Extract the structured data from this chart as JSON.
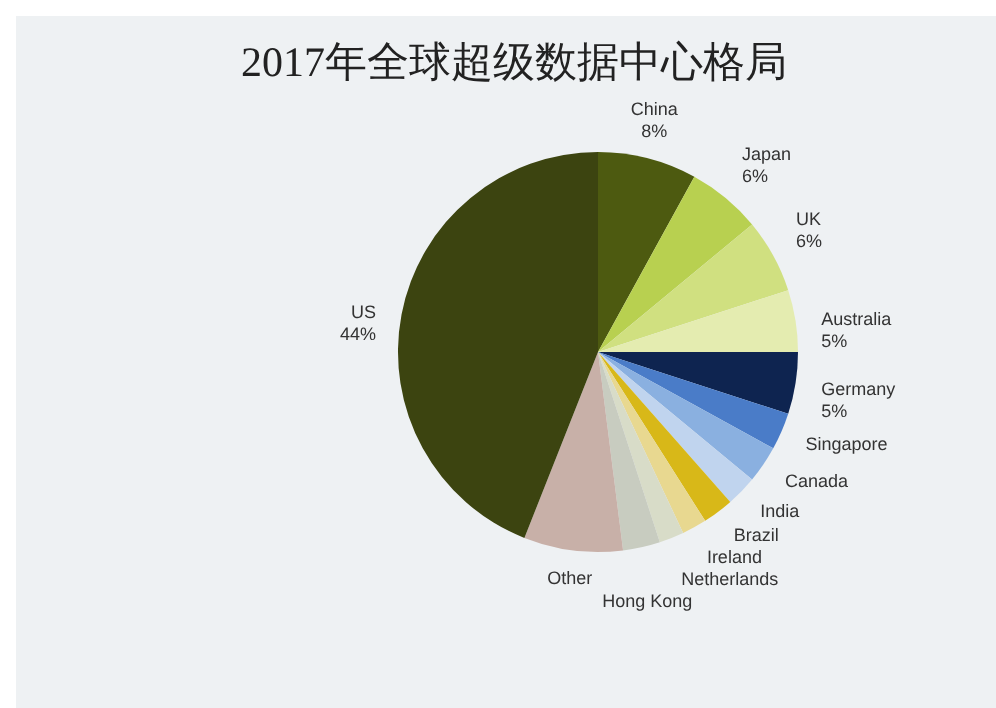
{
  "chart_data": {
    "type": "pie",
    "title": "2017年全球超级数据中心格局",
    "categories": [
      "China",
      "Japan",
      "UK",
      "Australia",
      "Germany",
      "Singapore",
      "Canada",
      "India",
      "Brazil",
      "Ireland",
      "Netherlands",
      "Hong Kong",
      "Other",
      "US"
    ],
    "values": [
      8,
      6,
      6,
      5,
      5,
      3,
      3,
      2.5,
      2.5,
      2,
      2,
      3,
      8,
      44
    ],
    "value_labels": [
      "8%",
      "6%",
      "6%",
      "5%",
      "5%",
      null,
      null,
      null,
      null,
      null,
      null,
      null,
      null,
      "44%"
    ],
    "colors": [
      "#4d5a10",
      "#b8d050",
      "#d0e080",
      "#e4ecb0",
      "#0e2450",
      "#4a7cc8",
      "#8ab0e0",
      "#c0d4ee",
      "#d8b818",
      "#e8d890",
      "#d8dcc8",
      "#c8ccc0",
      "#c8b0a8",
      "#3c4410"
    ]
  }
}
